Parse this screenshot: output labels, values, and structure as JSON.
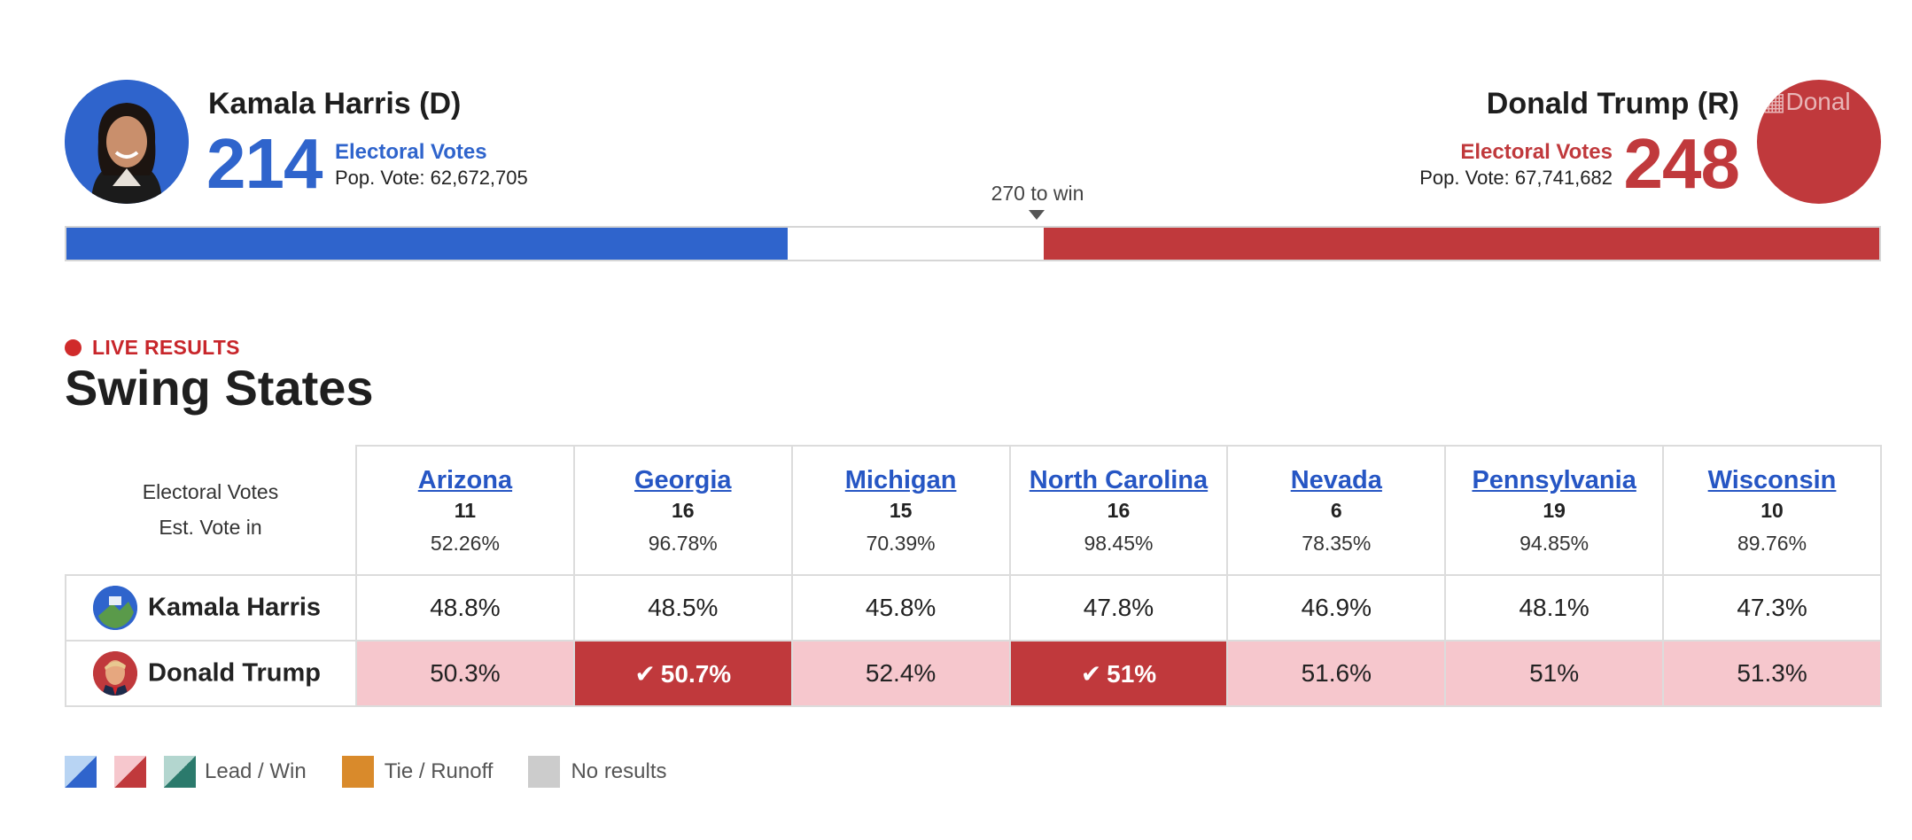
{
  "header": {
    "harris": {
      "name": "Kamala Harris (D)",
      "electoral_votes": "214",
      "ev_label": "Electoral Votes",
      "pop_vote": "Pop. Vote: 62,672,705",
      "color": "#2f64cc"
    },
    "trump": {
      "name": "Donald Trump (R)",
      "electoral_votes": "248",
      "ev_label": "Electoral Votes",
      "pop_vote": "Pop. Vote: 67,741,682",
      "photo_alt": "Donal",
      "color": "#c0393c"
    },
    "to_win": "270 to win",
    "bar": {
      "total": 538,
      "dem": 214,
      "rep": 248
    }
  },
  "live_label": "LIVE RESULTS",
  "title": "Swing States",
  "table": {
    "row_labels": {
      "electoral_votes": "Electoral Votes",
      "est_vote_in": "Est. Vote in"
    },
    "states": [
      {
        "name": "Arizona",
        "ev": "11",
        "est": "52.26%",
        "harris": "48.8%",
        "trump": "50.3%",
        "trump_status": "lead"
      },
      {
        "name": "Georgia",
        "ev": "16",
        "est": "96.78%",
        "harris": "48.5%",
        "trump": "50.7%",
        "trump_status": "win"
      },
      {
        "name": "Michigan",
        "ev": "15",
        "est": "70.39%",
        "harris": "45.8%",
        "trump": "52.4%",
        "trump_status": "lead"
      },
      {
        "name": "North Carolina",
        "ev": "16",
        "est": "98.45%",
        "harris": "47.8%",
        "trump": "51%",
        "trump_status": "win"
      },
      {
        "name": "Nevada",
        "ev": "6",
        "est": "78.35%",
        "harris": "46.9%",
        "trump": "51.6%",
        "trump_status": "lead"
      },
      {
        "name": "Pennsylvania",
        "ev": "19",
        "est": "94.85%",
        "harris": "48.1%",
        "trump": "51%",
        "trump_status": "lead"
      },
      {
        "name": "Wisconsin",
        "ev": "10",
        "est": "89.76%",
        "harris": "47.3%",
        "trump": "51.3%",
        "trump_status": "lead"
      }
    ],
    "candidates": {
      "harris": "Kamala Harris",
      "trump": "Donald Trump"
    },
    "check_icon": "✔"
  },
  "legend": {
    "lead_win": "Lead / Win",
    "tie_runoff": "Tie / Runoff",
    "no_results": "No results"
  }
}
